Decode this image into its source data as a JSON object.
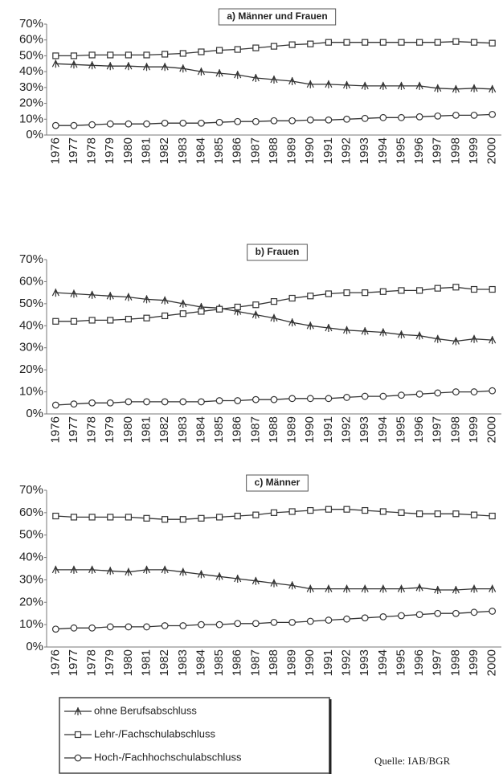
{
  "chart_data": [
    {
      "type": "line",
      "title": "a) Männer und Frauen",
      "categories": [
        "1976",
        "1977",
        "1978",
        "1979",
        "1980",
        "1981",
        "1982",
        "1983",
        "1984",
        "1985",
        "1986",
        "1987",
        "1988",
        "1989",
        "1990",
        "1991",
        "1992",
        "1993",
        "1994",
        "1995",
        "1996",
        "1997",
        "1998",
        "1999",
        "2000"
      ],
      "ylim": [
        0,
        70
      ],
      "yticks": [
        {
          "value": 0,
          "label": "0%"
        },
        {
          "value": 10,
          "label": "10%"
        },
        {
          "value": 20,
          "label": "20%"
        },
        {
          "value": 30,
          "label": "30%"
        },
        {
          "value": 40,
          "label": "40%"
        },
        {
          "value": 50,
          "label": "50%"
        },
        {
          "value": 60,
          "label": "60%"
        },
        {
          "value": 70,
          "label": "70%"
        }
      ],
      "series": [
        {
          "name": "ohne Berufsabschluss",
          "color": "#333333",
          "marker": "star",
          "values": [
            45,
            44.5,
            44,
            43.5,
            43.5,
            43,
            43,
            42,
            40,
            39,
            38,
            36,
            35,
            34,
            32,
            32,
            31.5,
            31,
            31,
            31,
            31,
            29.5,
            29,
            29.5,
            29
          ]
        },
        {
          "name": "Lehr-/Fachschulabschluss",
          "color": "#333333",
          "marker": "square",
          "values": [
            50,
            50,
            50.5,
            50.5,
            50.5,
            50.5,
            51,
            51.5,
            52.5,
            53.5,
            54,
            55,
            56,
            57,
            57.5,
            58.5,
            58.5,
            58.5,
            58.5,
            58.5,
            58.5,
            58.5,
            59,
            58.5,
            58
          ]
        },
        {
          "name": "Hoch-/Fachhochschulabschluss",
          "color": "#333333",
          "marker": "circle",
          "values": [
            6,
            6,
            6.5,
            7,
            7,
            7,
            7.5,
            7.5,
            7.5,
            8,
            8.5,
            8.5,
            9,
            9,
            9.5,
            9.5,
            10,
            10.5,
            11,
            11,
            11.5,
            12,
            12.5,
            12.5,
            13
          ]
        }
      ]
    },
    {
      "type": "line",
      "title": "b) Frauen",
      "categories": [
        "1976",
        "1977",
        "1978",
        "1979",
        "1980",
        "1981",
        "1982",
        "1983",
        "1984",
        "1985",
        "1986",
        "1987",
        "1988",
        "1989",
        "1990",
        "1991",
        "1992",
        "1993",
        "1994",
        "1995",
        "1996",
        "1997",
        "1998",
        "1999",
        "2000"
      ],
      "ylim": [
        0,
        70
      ],
      "yticks": [
        {
          "value": 0,
          "label": "0%"
        },
        {
          "value": 10,
          "label": "10%"
        },
        {
          "value": 20,
          "label": "20%"
        },
        {
          "value": 30,
          "label": "30%"
        },
        {
          "value": 40,
          "label": "40%"
        },
        {
          "value": 50,
          "label": "50%"
        },
        {
          "value": 60,
          "label": "60%"
        },
        {
          "value": 70,
          "label": "70%"
        }
      ],
      "series": [
        {
          "name": "ohne Berufsabschluss",
          "color": "#333333",
          "marker": "star",
          "values": [
            55,
            54.5,
            54,
            53.5,
            53,
            52,
            51.5,
            50,
            48.5,
            48,
            46.5,
            45,
            43.5,
            41.5,
            40,
            39,
            38,
            37.5,
            37,
            36,
            35.5,
            34,
            33,
            34,
            33.5
          ]
        },
        {
          "name": "Lehr-/Fachschulabschluss",
          "color": "#333333",
          "marker": "square",
          "values": [
            42,
            42,
            42.5,
            42.5,
            43,
            43.5,
            44.5,
            45.5,
            46.5,
            47.5,
            48.5,
            49.5,
            51,
            52.5,
            53.5,
            54.5,
            55,
            55,
            55.5,
            56,
            56,
            57,
            57.5,
            56.5,
            56.5
          ]
        },
        {
          "name": "Hoch-/Fachhochschulabschluss",
          "color": "#333333",
          "marker": "circle",
          "values": [
            4,
            4.5,
            5,
            5,
            5.5,
            5.5,
            5.5,
            5.5,
            5.5,
            6,
            6,
            6.5,
            6.5,
            7,
            7,
            7,
            7.5,
            8,
            8,
            8.5,
            9,
            9.5,
            10,
            10,
            10.5
          ]
        }
      ]
    },
    {
      "type": "line",
      "title": "c) Männer",
      "categories": [
        "1976",
        "1977",
        "1978",
        "1979",
        "1980",
        "1981",
        "1982",
        "1983",
        "1984",
        "1985",
        "1986",
        "1987",
        "1988",
        "1989",
        "1990",
        "1991",
        "1992",
        "1993",
        "1994",
        "1995",
        "1996",
        "1997",
        "1998",
        "1999",
        "2000"
      ],
      "ylim": [
        0,
        70
      ],
      "yticks": [
        {
          "value": 0,
          "label": "0%"
        },
        {
          "value": 10,
          "label": "10%"
        },
        {
          "value": 20,
          "label": "20%"
        },
        {
          "value": 30,
          "label": "30%"
        },
        {
          "value": 40,
          "label": "40%"
        },
        {
          "value": 50,
          "label": "50%"
        },
        {
          "value": 60,
          "label": "60%"
        },
        {
          "value": 70,
          "label": "70%"
        }
      ],
      "series": [
        {
          "name": "ohne Berufsabschluss",
          "color": "#333333",
          "marker": "star",
          "values": [
            34.5,
            34.5,
            34.5,
            34,
            33.5,
            34.5,
            34.5,
            33.5,
            32.5,
            31.5,
            30.5,
            29.5,
            28.5,
            27.5,
            26,
            26,
            26,
            26,
            26,
            26,
            26.5,
            25.5,
            25.5,
            26,
            26
          ]
        },
        {
          "name": "Lehr-/Fachschulabschluss",
          "color": "#333333",
          "marker": "square",
          "values": [
            58.5,
            58,
            58,
            58,
            58,
            57.5,
            57,
            57,
            57.5,
            58,
            58.5,
            59,
            60,
            60.5,
            61,
            61.5,
            61.5,
            61,
            60.5,
            60,
            59.5,
            59.5,
            59.5,
            59,
            58.5
          ]
        },
        {
          "name": "Hoch-/Fachhochschulabschluss",
          "color": "#333333",
          "marker": "circle",
          "values": [
            8,
            8.5,
            8.5,
            9,
            9,
            9,
            9.5,
            9.5,
            10,
            10,
            10.5,
            10.5,
            11,
            11,
            11.5,
            12,
            12.5,
            13,
            13.5,
            14,
            14.5,
            15,
            15,
            15.5,
            16
          ]
        }
      ]
    }
  ],
  "source": "Quelle: IAB/BGR"
}
